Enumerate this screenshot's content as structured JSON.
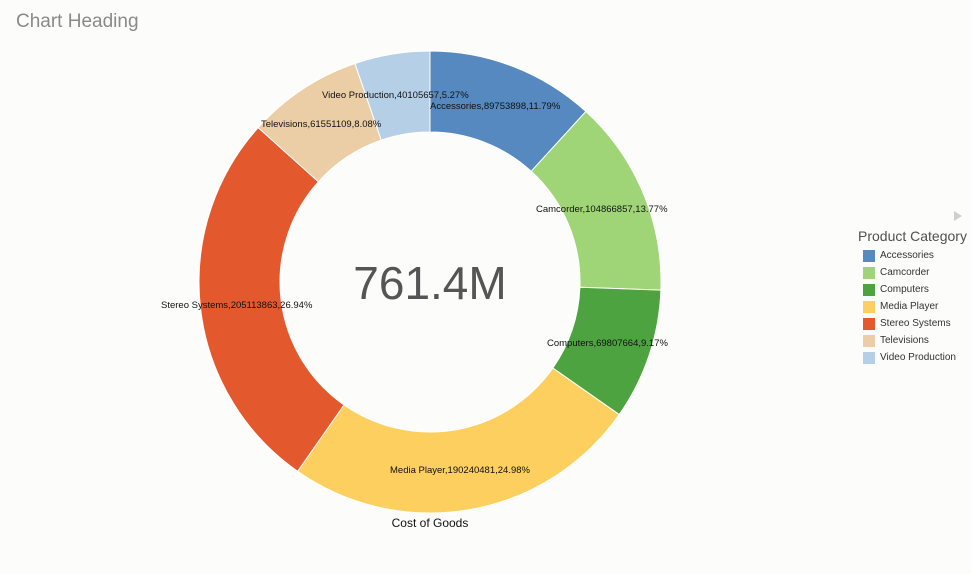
{
  "chart_heading": "Chart Heading",
  "chart_data": {
    "type": "pie",
    "subtype": "donut",
    "title": "Chart Heading",
    "center_label": "761.4M",
    "measure_label": "Cost of Goods",
    "legend_title": "Product Category",
    "legend_position": "right",
    "slices": [
      {
        "name": "Accessories",
        "value": 89753898,
        "percent": "11.79%",
        "label": "Accessories,89753898,11.79%",
        "color": "#5589bf"
      },
      {
        "name": "Camcorder",
        "value": 104866857,
        "percent": "13.77%",
        "label": "Camcorder,104866857,13.77%",
        "color": "#9fd577"
      },
      {
        "name": "Computers",
        "value": 69807664,
        "percent": "9.17%",
        "label": "Computers,69807664,9.17%",
        "color": "#4ca33f"
      },
      {
        "name": "Media Player",
        "value": 190240481,
        "percent": "24.98%",
        "label": "Media Player,190240481,24.98%",
        "color": "#fccf5e"
      },
      {
        "name": "Stereo Systems",
        "value": 205113863,
        "percent": "26.94%",
        "label": "Stereo Systems,205113863,26.94%",
        "color": "#e4582d"
      },
      {
        "name": "Televisions",
        "value": 61551109,
        "percent": "8.08%",
        "label": "Televisions,61551109,8.08%",
        "color": "#ebcea6"
      },
      {
        "name": "Video Production",
        "value": 40105657,
        "percent": "5.27%",
        "label": "Video Production,40105657,5.27%",
        "color": "#b5cfe6"
      }
    ]
  }
}
